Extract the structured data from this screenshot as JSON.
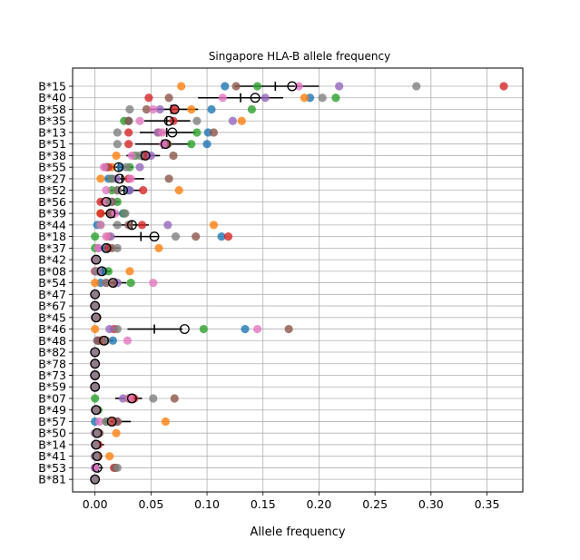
{
  "chart_data": {
    "type": "scatter",
    "title": "Singapore HLA-B allele frequency",
    "xlabel": "Allele frequency",
    "xlim": [
      -0.02,
      0.382
    ],
    "xticks": [
      "0.00",
      "0.05",
      "0.10",
      "0.15",
      "0.20",
      "0.25",
      "0.30",
      "0.35"
    ],
    "xtick_values": [
      0,
      0.05,
      0.1,
      0.15,
      0.2,
      0.25,
      0.3,
      0.35
    ],
    "grid": true,
    "series_colors": [
      "#1f77b4",
      "#ff7f0e",
      "#2ca02c",
      "#d62728",
      "#9467bd",
      "#8c564b",
      "#e377c2",
      "#7f7f7f"
    ],
    "categories": [
      "B*15",
      "B*40",
      "B*58",
      "B*35",
      "B*13",
      "B*51",
      "B*38",
      "B*55",
      "B*27",
      "B*52",
      "B*56",
      "B*39",
      "B*44",
      "B*18",
      "B*37",
      "B*42",
      "B*08",
      "B*54",
      "B*47",
      "B*67",
      "B*45",
      "B*46",
      "B*48",
      "B*82",
      "B*78",
      "B*73",
      "B*59",
      "B*07",
      "B*49",
      "B*57",
      "B*50",
      "B*14",
      "B*41",
      "B*53",
      "B*81"
    ],
    "rows": [
      {
        "allele": "B*15",
        "points": [
          0.116,
          0.077,
          0.145,
          0.365,
          0.218,
          0.126,
          0.182,
          0.287
        ],
        "mean": 0.161,
        "summary": 0.176,
        "range": [
          0.125,
          0.2
        ]
      },
      {
        "allele": "B*40",
        "points": [
          0.192,
          0.187,
          0.215,
          0.048,
          0.152,
          0.066,
          0.114,
          0.203
        ],
        "mean": 0.13,
        "summary": 0.143,
        "range": [
          0.092,
          0.168
        ]
      },
      {
        "allele": "B*58",
        "points": [
          0.104,
          0.086,
          0.14,
          0.071,
          0.058,
          0.046,
          0.052,
          0.031
        ],
        "mean": 0.068,
        "summary": 0.071,
        "range": [
          0.048,
          0.092
        ]
      },
      {
        "allele": "B*35",
        "points": [
          0.03,
          0.131,
          0.026,
          0.07,
          0.123,
          0.03,
          0.04,
          0.091
        ],
        "mean": 0.064,
        "summary": 0.066,
        "range": [
          0.044,
          0.085
        ]
      },
      {
        "allele": "B*13",
        "points": [
          0.101,
          0.057,
          0.091,
          0.03,
          0.056,
          0.106,
          0.06,
          0.02
        ],
        "mean": 0.064,
        "summary": 0.069,
        "range": [
          0.04,
          0.09
        ]
      },
      {
        "allele": "B*51",
        "points": [
          0.1,
          0.063,
          0.086,
          0.03,
          0.062,
          0.065,
          0.061,
          0.02
        ],
        "mean": 0.06,
        "summary": 0.063,
        "range": [
          0.036,
          0.085
        ]
      },
      {
        "allele": "B*38",
        "points": [
          0.045,
          0.019,
          0.036,
          0.045,
          0.05,
          0.07,
          0.033,
          0.04
        ],
        "mean": 0.042,
        "summary": 0.045,
        "range": [
          0.028,
          0.058
        ]
      },
      {
        "allele": "B*55",
        "points": [
          0.023,
          0.015,
          0.031,
          0.012,
          0.04,
          0.01,
          0.008,
          0.028
        ],
        "mean": 0.021,
        "summary": 0.021,
        "range": [
          0.01,
          0.034
        ]
      },
      {
        "allele": "B*27",
        "points": [
          0.012,
          0.005,
          0.015,
          0.03,
          0.019,
          0.066,
          0.032,
          0.015
        ],
        "mean": 0.024,
        "summary": 0.022,
        "range": [
          0.01,
          0.044
        ]
      },
      {
        "allele": "B*52",
        "points": [
          0.03,
          0.075,
          0.015,
          0.043,
          0.031,
          0.02,
          0.01,
          0.02
        ],
        "mean": 0.026,
        "summary": 0.025,
        "range": [
          0.012,
          0.041
        ]
      },
      {
        "allele": "B*56",
        "points": [
          0.013,
          0.011,
          0.02,
          0.005,
          0.015,
          0.015,
          0.01,
          0.013
        ],
        "mean": 0.012,
        "summary": 0.01,
        "range": [
          0.004,
          0.022
        ]
      },
      {
        "allele": "B*39",
        "points": [
          0.025,
          0.005,
          0.026,
          0.005,
          0.015,
          0.013,
          0.018,
          0.027
        ],
        "mean": 0.017,
        "summary": 0.014,
        "range": [
          0.006,
          0.027
        ]
      },
      {
        "allele": "B*44",
        "points": [
          0.002,
          0.106,
          0.005,
          0.042,
          0.065,
          0.03,
          0.005,
          0.02
        ],
        "mean": 0.033,
        "summary": 0.033,
        "range": [
          0.016,
          0.048
        ]
      },
      {
        "allele": "B*18",
        "points": [
          0.113,
          0.012,
          0.0,
          0.119,
          0.014,
          0.09,
          0.01,
          0.072
        ],
        "mean": 0.041,
        "summary": 0.053,
        "range": [
          0.016,
          0.057
        ]
      },
      {
        "allele": "B*37",
        "points": [
          0.01,
          0.057,
          0.0,
          0.012,
          0.003,
          0.015,
          0.003,
          0.02
        ],
        "mean": 0.012,
        "summary": 0.01,
        "range": [
          0.003,
          0.022
        ]
      },
      {
        "allele": "B*42",
        "points": [
          0.0,
          0.0,
          0.0,
          0.0,
          0.0,
          0.0,
          0.0,
          0.002
        ],
        "mean": 0.001,
        "summary": 0.001,
        "range": [
          0.0,
          0.004
        ]
      },
      {
        "allele": "B*08",
        "points": [
          0.008,
          0.031,
          0.012,
          0.0,
          0.003,
          0.001,
          0.001,
          0.001
        ],
        "mean": 0.007,
        "summary": 0.006,
        "range": [
          0.0,
          0.014
        ]
      },
      {
        "allele": "B*54",
        "points": [
          0.005,
          0.0,
          0.032,
          0.01,
          0.02,
          0.015,
          0.052,
          0.01
        ],
        "mean": 0.018,
        "summary": 0.016,
        "range": [
          0.008,
          0.028
        ]
      },
      {
        "allele": "B*47",
        "points": [
          0.0,
          0.0,
          0.0,
          0.0,
          0.0,
          0.0,
          0.0,
          0.0
        ],
        "mean": 0.0,
        "summary": 0.0,
        "range": [
          0.0,
          0.002
        ]
      },
      {
        "allele": "B*67",
        "points": [
          0.0,
          0.0,
          0.0,
          0.0,
          0.0,
          0.0,
          0.0,
          0.0
        ],
        "mean": 0.0,
        "summary": 0.0,
        "range": [
          0.0,
          0.002
        ]
      },
      {
        "allele": "B*45",
        "points": [
          0.0,
          0.0,
          0.002,
          0.001,
          0.0,
          0.0,
          0.0,
          0.0
        ],
        "mean": 0.001,
        "summary": 0.001,
        "range": [
          0.0,
          0.004
        ]
      },
      {
        "allele": "B*46",
        "points": [
          0.134,
          0.0,
          0.097,
          0.017,
          0.013,
          0.173,
          0.145,
          0.02
        ],
        "mean": 0.053,
        "summary": 0.08,
        "range": [
          0.029,
          0.078
        ]
      },
      {
        "allele": "B*48",
        "points": [
          0.016,
          0.004,
          0.002,
          0.006,
          0.002,
          0.003,
          0.029,
          0.01
        ],
        "mean": 0.009,
        "summary": 0.008,
        "range": [
          0.003,
          0.016
        ]
      },
      {
        "allele": "B*82",
        "points": [
          0.0,
          0.0,
          0.0,
          0.0,
          0.0,
          0.0,
          0.0,
          0.0
        ],
        "mean": 0.0,
        "summary": 0.0,
        "range": [
          0.0,
          0.002
        ]
      },
      {
        "allele": "B*78",
        "points": [
          0.0,
          0.0,
          0.0,
          0.0,
          0.0,
          0.0,
          0.0,
          0.0
        ],
        "mean": 0.0,
        "summary": 0.0,
        "range": [
          0.0,
          0.002
        ]
      },
      {
        "allele": "B*73",
        "points": [
          0.0,
          0.0,
          0.0,
          0.0,
          0.0,
          0.0,
          0.0,
          0.0
        ],
        "mean": 0.0,
        "summary": 0.0,
        "range": [
          0.0,
          0.002
        ]
      },
      {
        "allele": "B*59",
        "points": [
          0.0,
          0.0,
          0.0,
          0.0,
          0.0,
          0.0,
          0.0,
          0.0
        ],
        "mean": 0.0,
        "summary": 0.0,
        "range": [
          0.0,
          0.002
        ]
      },
      {
        "allele": "B*07",
        "points": [
          0.03,
          0.03,
          0.0,
          0.035,
          0.025,
          0.071,
          0.031,
          0.052
        ],
        "mean": 0.031,
        "summary": 0.033,
        "range": [
          0.018,
          0.042
        ]
      },
      {
        "allele": "B*49",
        "points": [
          0.0,
          0.0,
          0.003,
          0.001,
          0.0,
          0.0,
          0.0,
          0.0
        ],
        "mean": 0.001,
        "summary": 0.001,
        "range": [
          0.0,
          0.006
        ]
      },
      {
        "allele": "B*57",
        "points": [
          0.0,
          0.063,
          0.01,
          0.015,
          0.02,
          0.02,
          0.004,
          0.01
        ],
        "mean": 0.017,
        "summary": 0.015,
        "range": [
          0.007,
          0.032
        ]
      },
      {
        "allele": "B*50",
        "points": [
          0.0,
          0.019,
          0.0,
          0.002,
          0.002,
          0.004,
          0.0,
          0.001
        ],
        "mean": 0.003,
        "summary": 0.002,
        "range": [
          0.0,
          0.006
        ]
      },
      {
        "allele": "B*14",
        "points": [
          0.0,
          0.0,
          0.001,
          0.003,
          0.0,
          0.0,
          0.0,
          0.0
        ],
        "mean": 0.001,
        "summary": 0.001,
        "range": [
          0.0,
          0.008
        ]
      },
      {
        "allele": "B*41",
        "points": [
          0.0,
          0.013,
          0.001,
          0.002,
          0.0,
          0.002,
          0.0,
          0.0
        ],
        "mean": 0.002,
        "summary": 0.002,
        "range": [
          0.0,
          0.006
        ]
      },
      {
        "allele": "B*53",
        "points": [
          0.0,
          0.0,
          0.0,
          0.017,
          0.0,
          0.018,
          0.0,
          0.02
        ],
        "mean": 0.003,
        "summary": 0.002,
        "range": [
          0.0,
          0.007
        ]
      },
      {
        "allele": "B*81",
        "points": [
          0.0,
          0.0,
          0.0,
          0.0,
          0.0,
          0.0,
          0.0,
          0.0
        ],
        "mean": 0.0,
        "summary": 0.0,
        "range": [
          0.0,
          0.001
        ]
      }
    ]
  }
}
